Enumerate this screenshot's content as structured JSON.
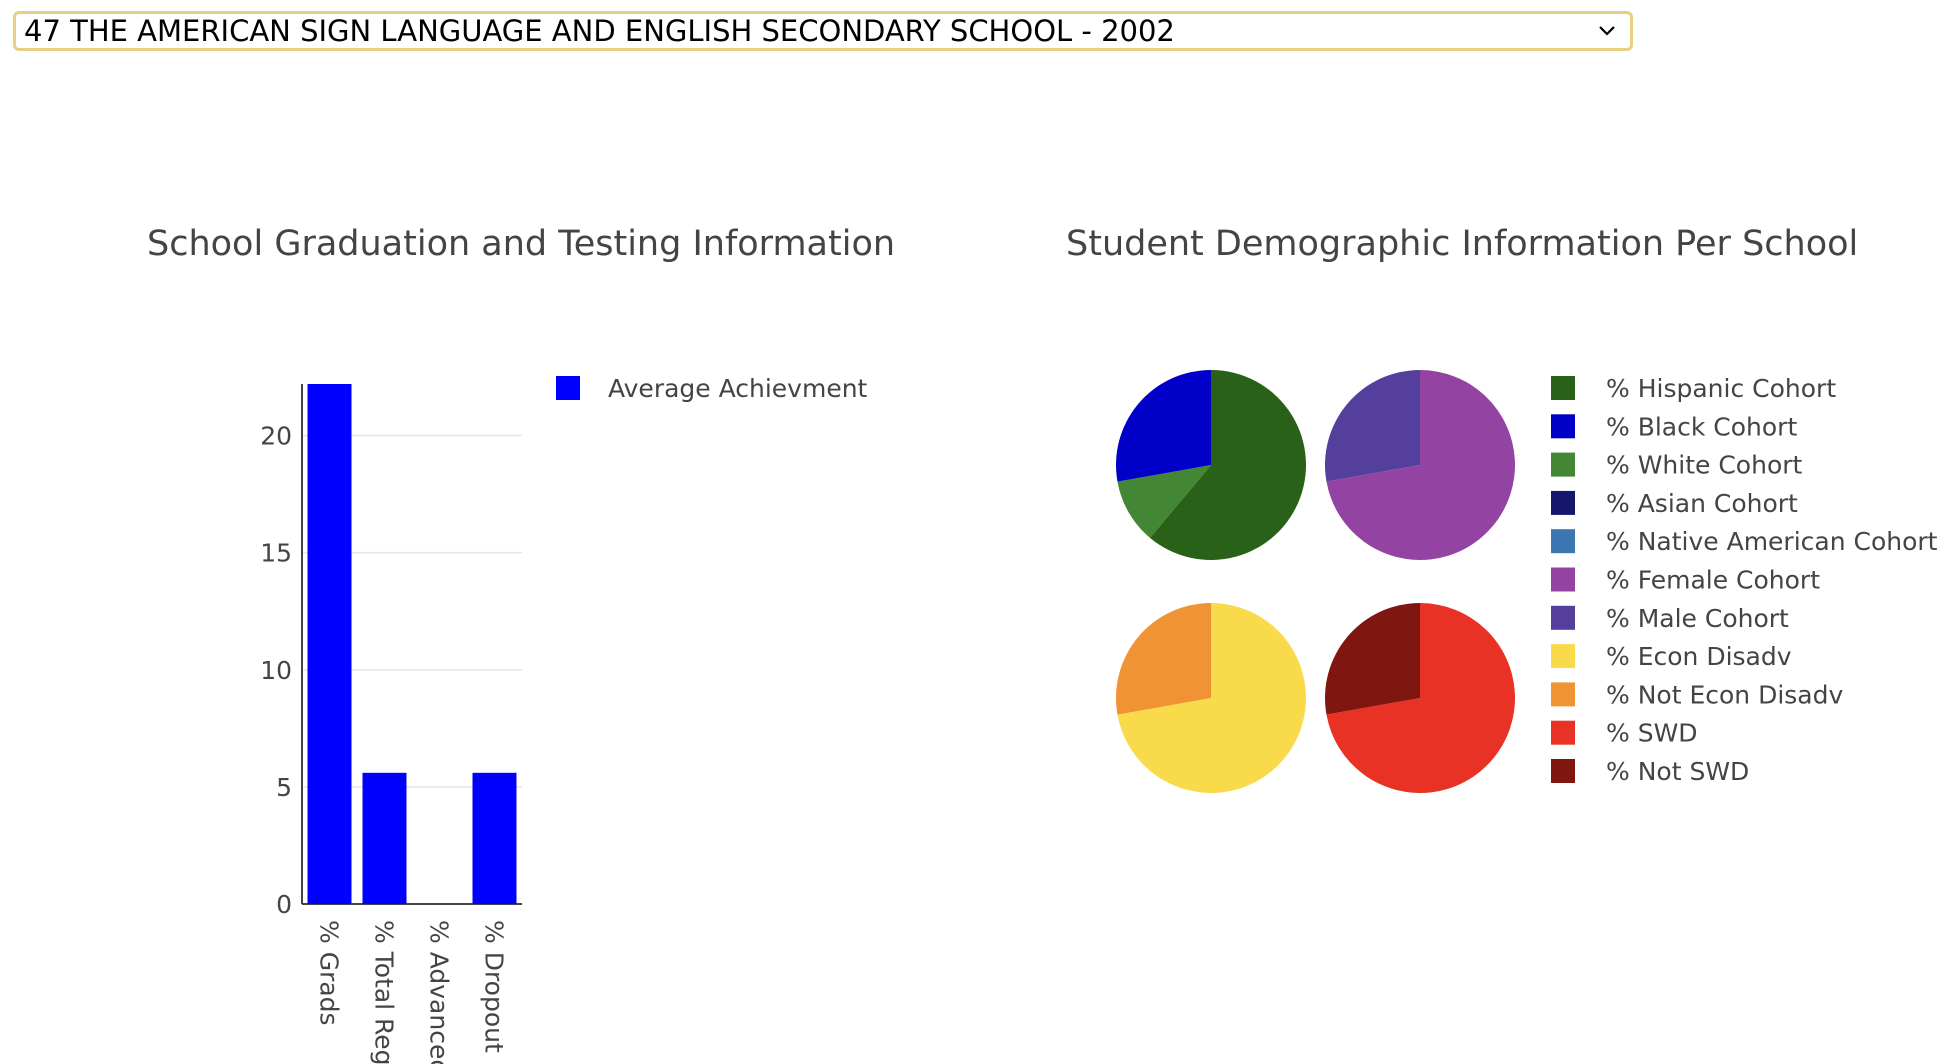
{
  "school_select": {
    "value": "47 THE AMERICAN SIGN LANGUAGE AND ENGLISH SECONDARY SCHOOL - 2002",
    "chevron_icon": "chevron-down-icon"
  },
  "chart_data": [
    {
      "type": "bar",
      "title": "School Graduation and Testing Information",
      "categories": [
        "% Grads",
        "% Total Reg",
        "% Advanced",
        "% Dropout"
      ],
      "series": [
        {
          "name": "Average Achievment",
          "values": [
            22.2,
            5.6,
            0,
            5.6
          ],
          "color": "#0000ff"
        }
      ],
      "ylim": [
        0,
        22.2
      ],
      "yticks": [
        0,
        5,
        10,
        15,
        20
      ],
      "grid": true,
      "legend": "right"
    },
    {
      "type": "pie",
      "title": "Student Demographic Information Per School",
      "legend": "right",
      "legend_entries": [
        {
          "label": "% Hispanic Cohort",
          "color": "#2a6119"
        },
        {
          "label": "% Black Cohort",
          "color": "#0000c9"
        },
        {
          "label": "% White Cohort",
          "color": "#438633"
        },
        {
          "label": "% Asian Cohort",
          "color": "#14176b"
        },
        {
          "label": "% Native American Cohort",
          "color": "#3c76b2"
        },
        {
          "label": "% Female Cohort",
          "color": "#9344a3"
        },
        {
          "label": "% Male Cohort",
          "color": "#54409c"
        },
        {
          "label": "% Econ Disadv",
          "color": "#f9da4a"
        },
        {
          "label": "% Not Econ Disadv",
          "color": "#f09334"
        },
        {
          "label": "% SWD",
          "color": "#e93226"
        },
        {
          "label": "% Not SWD",
          "color": "#7f1610"
        }
      ],
      "pies": [
        {
          "slices": [
            {
              "label": "% Hispanic Cohort",
              "value": 61.1,
              "color": "#2a6119"
            },
            {
              "label": "% White Cohort",
              "value": 11.1,
              "color": "#438633"
            },
            {
              "label": "% Black Cohort",
              "value": 27.8,
              "color": "#0000c9"
            }
          ]
        },
        {
          "slices": [
            {
              "label": "% Female Cohort",
              "value": 72.2,
              "color": "#9344a3"
            },
            {
              "label": "% Male Cohort",
              "value": 27.8,
              "color": "#54409c"
            }
          ]
        },
        {
          "slices": [
            {
              "label": "% Econ Disadv",
              "value": 72.2,
              "color": "#f9da4a"
            },
            {
              "label": "% Not Econ Disadv",
              "value": 27.8,
              "color": "#f09334"
            }
          ]
        },
        {
          "slices": [
            {
              "label": "% SWD",
              "value": 72.2,
              "color": "#e93226"
            },
            {
              "label": "% Not SWD",
              "value": 27.8,
              "color": "#7f1610"
            }
          ]
        }
      ]
    }
  ]
}
